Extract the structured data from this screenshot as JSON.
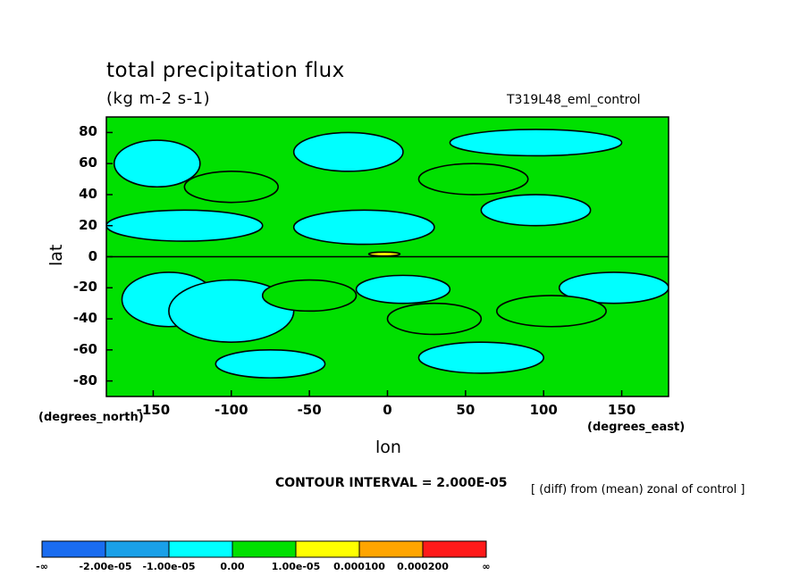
{
  "chart_data": {
    "type": "heatmap",
    "title": "total precipitation flux",
    "subtitle": "(kg m-2 s-1)",
    "dataset": "T319L48_eml_control",
    "xlabel": "lon",
    "ylabel": "lat",
    "x_unit_label": "(degrees_east)",
    "y_unit_label": "(degrees_north)",
    "x_ticks": [
      {
        "value": -150,
        "label": "-150"
      },
      {
        "value": -100,
        "label": "-100"
      },
      {
        "value": -50,
        "label": "-50"
      },
      {
        "value": 0,
        "label": "0"
      },
      {
        "value": 50,
        "label": "50"
      },
      {
        "value": 100,
        "label": "100"
      },
      {
        "value": 150,
        "label": "150"
      }
    ],
    "y_ticks": [
      {
        "value": 80,
        "label": "80"
      },
      {
        "value": 60,
        "label": "60"
      },
      {
        "value": 40,
        "label": "40"
      },
      {
        "value": 20,
        "label": "20"
      },
      {
        "value": 0,
        "label": "0"
      },
      {
        "value": -20,
        "label": "-20"
      },
      {
        "value": -40,
        "label": "-40"
      },
      {
        "value": -60,
        "label": "-60"
      },
      {
        "value": -80,
        "label": "-80"
      }
    ],
    "xlim": [
      -180,
      180
    ],
    "ylim": [
      -90,
      90
    ],
    "contour_interval_text": "CONTOUR INTERVAL = 2.000E-05",
    "note": "[ (diff) from (mean) zonal of control ]",
    "colorbar": {
      "colors": [
        "#1a6cf0",
        "#1aa0e8",
        "#00ffff",
        "#00e000",
        "#ffff00",
        "#ffa500",
        "#ff1a1a"
      ],
      "labels": [
        "-∞",
        "-2.00e-05",
        "-1.00e-05",
        "0.00",
        "1.00e-05",
        "0.000100",
        "0.000200",
        "∞"
      ]
    },
    "regions": [
      {
        "level": "negative",
        "color": "#00ffff",
        "lon": [
          -170,
          -110
        ],
        "lat": [
          -45,
          -10
        ]
      },
      {
        "level": "negative",
        "color": "#00ffff",
        "lon": [
          -140,
          -60
        ],
        "lat": [
          -55,
          -15
        ]
      },
      {
        "level": "negative",
        "color": "#00ffff",
        "lon": [
          -20,
          40
        ],
        "lat": [
          -30,
          -12
        ]
      },
      {
        "level": "negative",
        "color": "#00ffff",
        "lon": [
          -180,
          -80
        ],
        "lat": [
          10,
          30
        ]
      },
      {
        "level": "negative",
        "color": "#00ffff",
        "lon": [
          -60,
          30
        ],
        "lat": [
          8,
          30
        ]
      },
      {
        "level": "negative",
        "color": "#00ffff",
        "lon": [
          -175,
          -120
        ],
        "lat": [
          45,
          75
        ]
      },
      {
        "level": "negative",
        "color": "#00ffff",
        "lon": [
          -60,
          10
        ],
        "lat": [
          55,
          80
        ]
      },
      {
        "level": "negative",
        "color": "#00ffff",
        "lon": [
          40,
          150
        ],
        "lat": [
          65,
          82
        ]
      },
      {
        "level": "negative",
        "color": "#00ffff",
        "lon": [
          20,
          100
        ],
        "lat": [
          -75,
          -55
        ]
      },
      {
        "level": "negative",
        "color": "#00ffff",
        "lon": [
          -110,
          -40
        ],
        "lat": [
          -78,
          -60
        ]
      },
      {
        "level": "negative",
        "color": "#00ffff",
        "lon": [
          110,
          180
        ],
        "lat": [
          -30,
          -10
        ]
      },
      {
        "level": "negative",
        "color": "#00ffff",
        "lon": [
          60,
          130
        ],
        "lat": [
          20,
          40
        ]
      },
      {
        "level": "positive",
        "color": "#00e000",
        "lon": [
          -80,
          -20
        ],
        "lat": [
          -35,
          -15
        ]
      },
      {
        "level": "positive",
        "color": "#00e000",
        "lon": [
          0,
          60
        ],
        "lat": [
          -50,
          -30
        ]
      },
      {
        "level": "positive",
        "color": "#00e000",
        "lon": [
          70,
          140
        ],
        "lat": [
          -45,
          -25
        ]
      },
      {
        "level": "positive",
        "color": "#00e000",
        "lon": [
          -130,
          -70
        ],
        "lat": [
          35,
          55
        ]
      },
      {
        "level": "positive",
        "color": "#00e000",
        "lon": [
          20,
          90
        ],
        "lat": [
          40,
          60
        ]
      },
      {
        "level": "strong-positive",
        "color": "#ffff00",
        "lon": [
          -12,
          8
        ],
        "lat": [
          0.5,
          3
        ]
      }
    ]
  }
}
